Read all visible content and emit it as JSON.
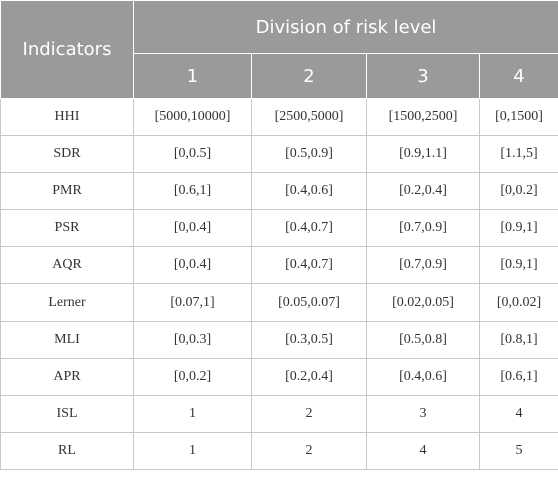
{
  "header": {
    "indicators_label": "Indicators",
    "division_label": "Division of risk level",
    "levels": [
      "1",
      "2",
      "3",
      "4"
    ]
  },
  "rows": [
    {
      "name": "HHI",
      "values": [
        "[5000,10000]",
        "[2500,5000]",
        "[1500,2500]",
        "[0,1500]"
      ]
    },
    {
      "name": "SDR",
      "values": [
        "[0,0.5]",
        "[0.5,0.9]",
        "[0.9,1.1]",
        "[1.1,5]"
      ]
    },
    {
      "name": "PMR",
      "values": [
        "[0.6,1]",
        "[0.4,0.6]",
        "[0.2,0.4]",
        "[0,0.2]"
      ]
    },
    {
      "name": "PSR",
      "values": [
        "[0,0.4]",
        "[0.4,0.7]",
        "[0.7,0.9]",
        "[0.9,1]"
      ]
    },
    {
      "name": "AQR",
      "values": [
        "[0,0.4]",
        "[0.4,0.7]",
        "[0.7,0.9]",
        "[0.9,1]"
      ]
    },
    {
      "name": "Lerner",
      "values": [
        "[0.07,1]",
        "[0.05,0.07]",
        "[0.02,0.05]",
        "[0,0.02]"
      ]
    },
    {
      "name": "MLI",
      "values": [
        "[0,0.3]",
        "[0.3,0.5]",
        "[0.5,0.8]",
        "[0.8,1]"
      ]
    },
    {
      "name": "APR",
      "values": [
        "[0,0.2]",
        "[0.2,0.4]",
        "[0.4,0.6]",
        "[0.6,1]"
      ]
    },
    {
      "name": "ISL",
      "values": [
        "1",
        "2",
        "3",
        "4"
      ]
    },
    {
      "name": "RL",
      "values": [
        "1",
        "2",
        "4",
        "5"
      ]
    }
  ],
  "colors": {
    "header_bg": "#9a9a9a",
    "header_text": "#ffffff",
    "grid_line": "#c8c8c8",
    "body_text": "#333333"
  }
}
